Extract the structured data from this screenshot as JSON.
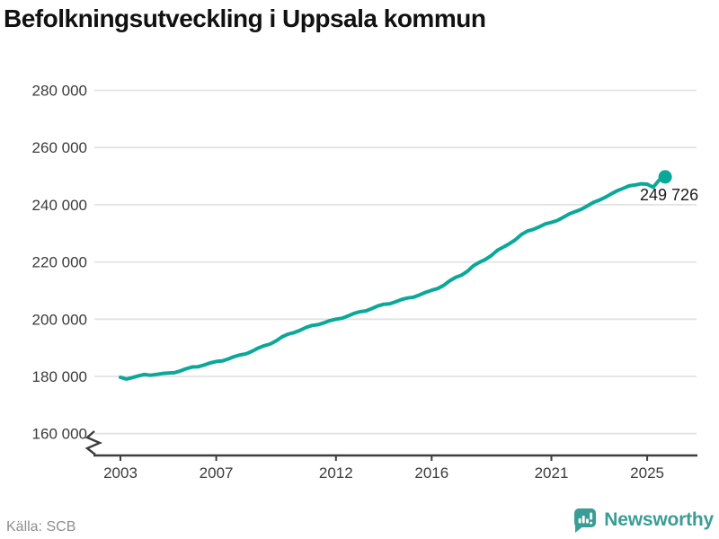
{
  "title": "Befolkningsutveckling i Uppsala kommun",
  "source": "Källa: SCB",
  "branding": {
    "name": "Newsworthy",
    "logo_icon": "newsworthy-speech-bubble-bar-chart-icon"
  },
  "colors": {
    "line": "#0ba89a",
    "marker": "#0ba89a",
    "grid": "#e2e2e2",
    "axis": "#3d3d3d",
    "tick_text": "#3b3b3b",
    "end_label_text": "#1a1a1a",
    "title_text": "#111111",
    "source_text": "#8e8e8e",
    "brand_teal": "#3a9d95",
    "background": "#ffffff"
  },
  "chart_data": {
    "type": "line",
    "title": "Befolkningsutveckling i Uppsala kommun",
    "xlabel": "",
    "ylabel": "",
    "grid": "horizontal",
    "legend": "none",
    "y_axis_break": true,
    "ylim": [
      160000,
      288000
    ],
    "xlim": [
      2003,
      2026
    ],
    "x_unit": "year (quarterly data)",
    "x_start": 2003.0,
    "x_step": 0.25,
    "values": [
      179700,
      179100,
      179600,
      180200,
      180700,
      180400,
      180700,
      181000,
      181200,
      181300,
      181900,
      182700,
      183300,
      183400,
      184000,
      184700,
      185200,
      185400,
      186100,
      186900,
      187500,
      187900,
      188800,
      189900,
      190700,
      191300,
      192400,
      193800,
      194800,
      195300,
      196100,
      197100,
      197800,
      198100,
      198700,
      199500,
      200000,
      200300,
      201100,
      202000,
      202600,
      202900,
      203700,
      204600,
      205200,
      205400,
      206100,
      206900,
      207400,
      207700,
      208500,
      209400,
      210100,
      210700,
      211800,
      213400,
      214600,
      215400,
      216800,
      218700,
      219900,
      220900,
      222300,
      224100,
      225200,
      226400,
      227800,
      229600,
      230800,
      231400,
      232300,
      233300,
      233800,
      234500,
      235600,
      236800,
      237600,
      238400,
      239600,
      240800,
      241600,
      242600,
      243800,
      244900,
      245700,
      246600,
      246900,
      247300,
      247200,
      246100,
      248600,
      249726
    ],
    "end_value": 249726,
    "end_label": "249 726",
    "y_ticks": [
      {
        "value": 280000,
        "label": "280 000"
      },
      {
        "value": 260000,
        "label": "260 000"
      },
      {
        "value": 240000,
        "label": "240 000"
      },
      {
        "value": 220000,
        "label": "220 000"
      },
      {
        "value": 200000,
        "label": "200 000"
      },
      {
        "value": 180000,
        "label": "180 000"
      },
      {
        "value": 160000,
        "label": "160 000"
      }
    ],
    "x_ticks": [
      {
        "value": 2003,
        "label": "2003"
      },
      {
        "value": 2007,
        "label": "2007"
      },
      {
        "value": 2012,
        "label": "2012"
      },
      {
        "value": 2016,
        "label": "2016"
      },
      {
        "value": 2021,
        "label": "2021"
      },
      {
        "value": 2025,
        "label": "2025"
      }
    ]
  }
}
